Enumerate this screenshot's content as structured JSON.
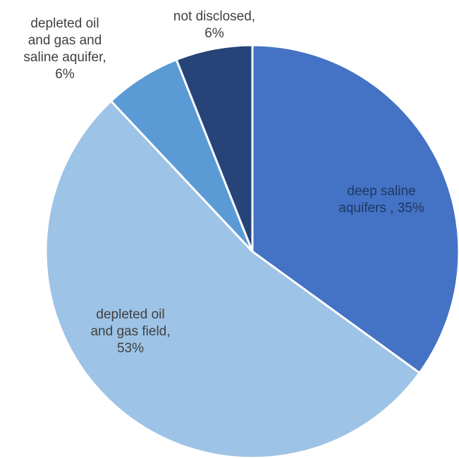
{
  "chart_data": {
    "type": "pie",
    "title": "",
    "slices": [
      {
        "label_lines": [
          "deep saline",
          "aquifers  , 35%"
        ],
        "category": "deep saline aquifers",
        "value": 35,
        "color": "#4472C4",
        "text_color": "#1F3864"
      },
      {
        "label_lines": [
          "depleted oil",
          "and gas field,",
          "53%"
        ],
        "category": "depleted oil and gas field",
        "value": 53,
        "color": "#9DC3E6",
        "text_color": "#404040"
      },
      {
        "label_lines": [
          "depleted oil",
          "and gas and",
          "saline aquifer,",
          "6%"
        ],
        "category": "depleted oil and gas and saline aquifer",
        "value": 6,
        "color": "#5B9BD5",
        "text_color": "#404040"
      },
      {
        "label_lines": [
          "not disclosed,",
          "6%"
        ],
        "category": "not disclosed",
        "value": 6,
        "color": "#264478",
        "text_color": "#404040"
      }
    ]
  }
}
